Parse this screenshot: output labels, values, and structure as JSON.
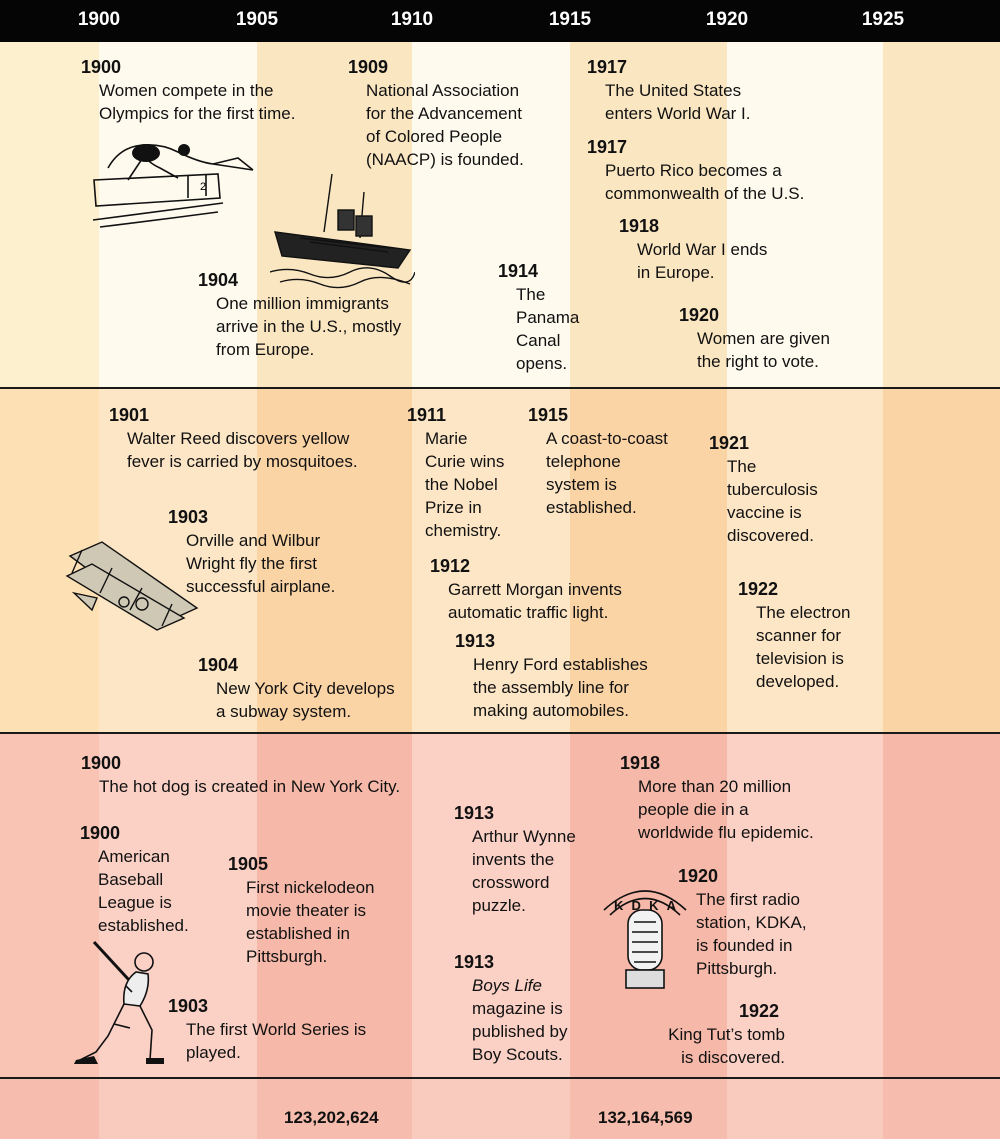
{
  "years": [
    "1900",
    "1905",
    "1910",
    "1915",
    "1920",
    "1925"
  ],
  "top": [
    {
      "year": "1900",
      "text": "Women compete in the\nOlympics for the first time."
    },
    {
      "year": "1909",
      "text": "National Association\nfor the Advancement\nof Colored People\n(NAACP) is founded."
    },
    {
      "year": "1917",
      "text": "The United States\nenters World War I."
    },
    {
      "year": "1917",
      "text": "Puerto Rico becomes a\ncommonwealth of the U.S."
    },
    {
      "year": "1918",
      "text": "World War I ends\nin Europe."
    },
    {
      "year": "1914",
      "text": "The\nPanama\nCanal\nopens."
    },
    {
      "year": "1904",
      "text": "One million immigrants\narrive in the U.S., mostly\nfrom Europe."
    },
    {
      "year": "1920",
      "text": "Women are given\nthe right to vote."
    }
  ],
  "middle": [
    {
      "year": "1901",
      "text": "Walter Reed discovers yellow\nfever is carried by mosquitoes."
    },
    {
      "year": "1911",
      "text": "Marie\nCurie wins\nthe Nobel\nPrize in\nchemistry."
    },
    {
      "year": "1915",
      "text": "A coast-to-coast\ntelephone\nsystem is\nestablished."
    },
    {
      "year": "1921",
      "text": "The\ntuberculosis\nvaccine is\ndiscovered."
    },
    {
      "year": "1903",
      "text": "Orville and Wilbur\nWright fly the first\nsuccessful airplane."
    },
    {
      "year": "1912",
      "text": "Garrett Morgan invents\nautomatic traffic light."
    },
    {
      "year": "1922",
      "text": "The electron\nscanner for\ntelevision is\ndeveloped."
    },
    {
      "year": "1913",
      "text": "Henry Ford establishes\nthe assembly line for\nmaking automobiles."
    },
    {
      "year": "1904",
      "text": "New York City develops\na subway system."
    }
  ],
  "bottom": [
    {
      "year": "1900",
      "text": "The hot dog is created in New York City."
    },
    {
      "year": "1918",
      "text": "More than 20 million\npeople die in a\nworldwide flu epidemic."
    },
    {
      "year": "1913",
      "text": "Arthur Wynne\ninvents the\ncrossword\npuzzle."
    },
    {
      "year": "1900",
      "text": "American\nBaseball\nLeague is\nestablished."
    },
    {
      "year": "1905",
      "text": "First nickelodeon\nmovie theater is\nestablished in\nPittsburgh."
    },
    {
      "year": "1920",
      "text": "The first radio\nstation, KDKA,\nis founded in\nPittsburgh."
    },
    {
      "year": "1913",
      "text_italic": "Boys Life",
      "text": "\nmagazine is\npublished by\nBoy Scouts."
    },
    {
      "year": "1903",
      "text": "The first World Series is\nplayed."
    },
    {
      "year": "1922",
      "text": "King Tut’s tomb\nis discovered."
    }
  ],
  "population": [
    "123,202,624",
    "132,164,569"
  ],
  "art": {
    "radio_letters": "KDKA"
  }
}
